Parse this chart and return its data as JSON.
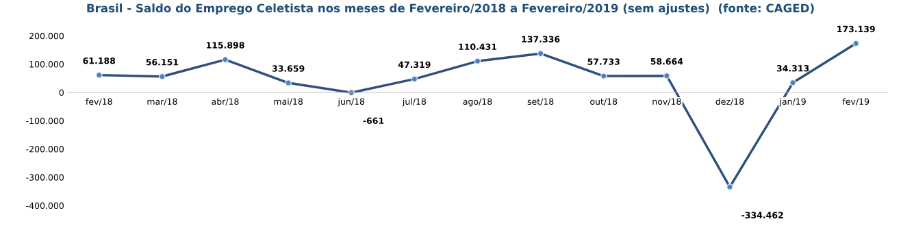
{
  "chart_data": {
    "type": "line",
    "title": "Brasil - Saldo do Emprego Celetista nos meses de Fevereiro/2018 a Fevereiro/2019 (sem ajustes)  (fonte: CAGED)",
    "categories": [
      "fev/18",
      "mar/18",
      "abr/18",
      "mai/18",
      "jun/18",
      "jul/18",
      "ago/18",
      "set/18",
      "out/18",
      "nov/18",
      "dez/18",
      "jan/19",
      "fev/19"
    ],
    "series": [
      {
        "color": "#2f4f7f",
        "values": [
          61188,
          56151,
          115898,
          33659,
          -661,
          47319,
          110431,
          137336,
          57733,
          58664,
          -334462,
          34313,
          173139
        ],
        "value_labels": [
          "61.188",
          "56.151",
          "115.898",
          "33.659",
          "-661",
          "47.319",
          "110.431",
          "137.336",
          "57.733",
          "58.664",
          "-334.462",
          "34.313",
          "173.139"
        ]
      }
    ],
    "ylim": [
      -400000,
      200000
    ],
    "yticks": [
      {
        "value": -400000,
        "label": "-400.000"
      },
      {
        "value": -300000,
        "label": "-300.000"
      },
      {
        "value": -200000,
        "label": "-200.000"
      },
      {
        "value": -100000,
        "label": "-100.000"
      },
      {
        "value": 0,
        "label": "0"
      },
      {
        "value": 100000,
        "label": "100.000"
      },
      {
        "value": 200000,
        "label": "200.000"
      }
    ],
    "grid": false,
    "marker": "circle",
    "line_style": "solid"
  }
}
